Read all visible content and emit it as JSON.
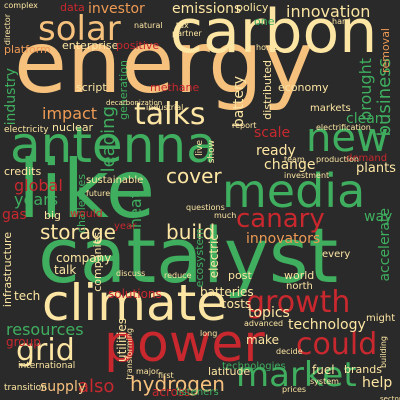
{
  "palette": {
    "background": "#2a2a2a",
    "cream": "#fde6a3",
    "peach": "#f6c07d",
    "orange": "#ee9a55",
    "red": "#c8282e",
    "green": "#3fae5f",
    "lightgreen": "#9bd47a"
  },
  "words": {
    "energy": "energy",
    "carbon": "carbon",
    "catalyst": "catalyst",
    "like": "like",
    "antenna": "antenna",
    "climate": "climate",
    "power": "power",
    "media": "media",
    "solar": "solar",
    "market": "market",
    "growth": "growth",
    "could": "could",
    "grid": "grid",
    "new": "new",
    "talks": "talks",
    "canary": "canary",
    "hydrogen": "hydrogen",
    "storage": "storage",
    "cover": "cover",
    "build": "build",
    "innovation": "innovation",
    "emissions": "emissions",
    "investor": "investor",
    "impact": "impact",
    "business": "business",
    "brought": "brought",
    "technology": "technology",
    "resources": "resources",
    "innovators": "innovators",
    "global": "global",
    "years": "years",
    "gas": "gas",
    "leading": "leading",
    "also": "also",
    "supply": "supply",
    "group": "group",
    "topics": "topics",
    "ready": "ready",
    "change": "change",
    "clean": "clean",
    "scale": "scale",
    "accelerate": "accelerate",
    "plants": "plants",
    "batteries": "batteries",
    "costs": "costs",
    "company": "company",
    "talk": "talk",
    "fuel": "fuel",
    "help": "help",
    "brands": "brands",
    "way": "way",
    "industry": "industry",
    "battery": "battery",
    "economy": "economy",
    "platform": "platform",
    "data": "data",
    "enterprise": "enterprise",
    "positive": "positive",
    "methane": "methane",
    "policy": "policy",
    "removal": "removal",
    "generation": "generation",
    "nuclear": "nuclear",
    "infrastructure": "infrastructure",
    "credits": "credits",
    "script": "script",
    "sustainable": "sustainable",
    "distributed": "distributed",
    "solutions": "solutions",
    "latitude": "latitude",
    "world": "world",
    "post": "post",
    "heat": "heat",
    "electric": "electric",
    "ecosystem": "ecosystem",
    "challenges": "challenges",
    "tech": "tech",
    "companies": "companies",
    "utilities": "utilities",
    "across": "across",
    "listeners": "listeners",
    "technologies": "technologies",
    "markets": "markets",
    "demand": "demand",
    "one": "one",
    "every": "every",
    "north": "north",
    "transition": "transition",
    "international": "international",
    "electricity": "electricity",
    "might": "might",
    "make": "make",
    "big": "big",
    "would": "would",
    "year": "year",
    "advanced": "advanced",
    "future": "future",
    "questions": "questions",
    "much": "much",
    "discuss": "discuss",
    "reduce": "reduce",
    "major": "major",
    "first": "first",
    "live": "live",
    "show": "show",
    "home": "home",
    "team": "team",
    "production": "production",
    "investment": "investment",
    "report": "report",
    "electrification": "electrification",
    "industrial": "industrial",
    "natural": "natural",
    "tax": "tax",
    "partner": "partner",
    "decarbonization": "decarbonization",
    "complex": "complex",
    "director": "director",
    "building": "building",
    "decide": "decide",
    "sectors": "sectors",
    "system": "system",
    "prices": "prices",
    "hard": "hard",
    "transforming": "transforming",
    "long": "long"
  }
}
